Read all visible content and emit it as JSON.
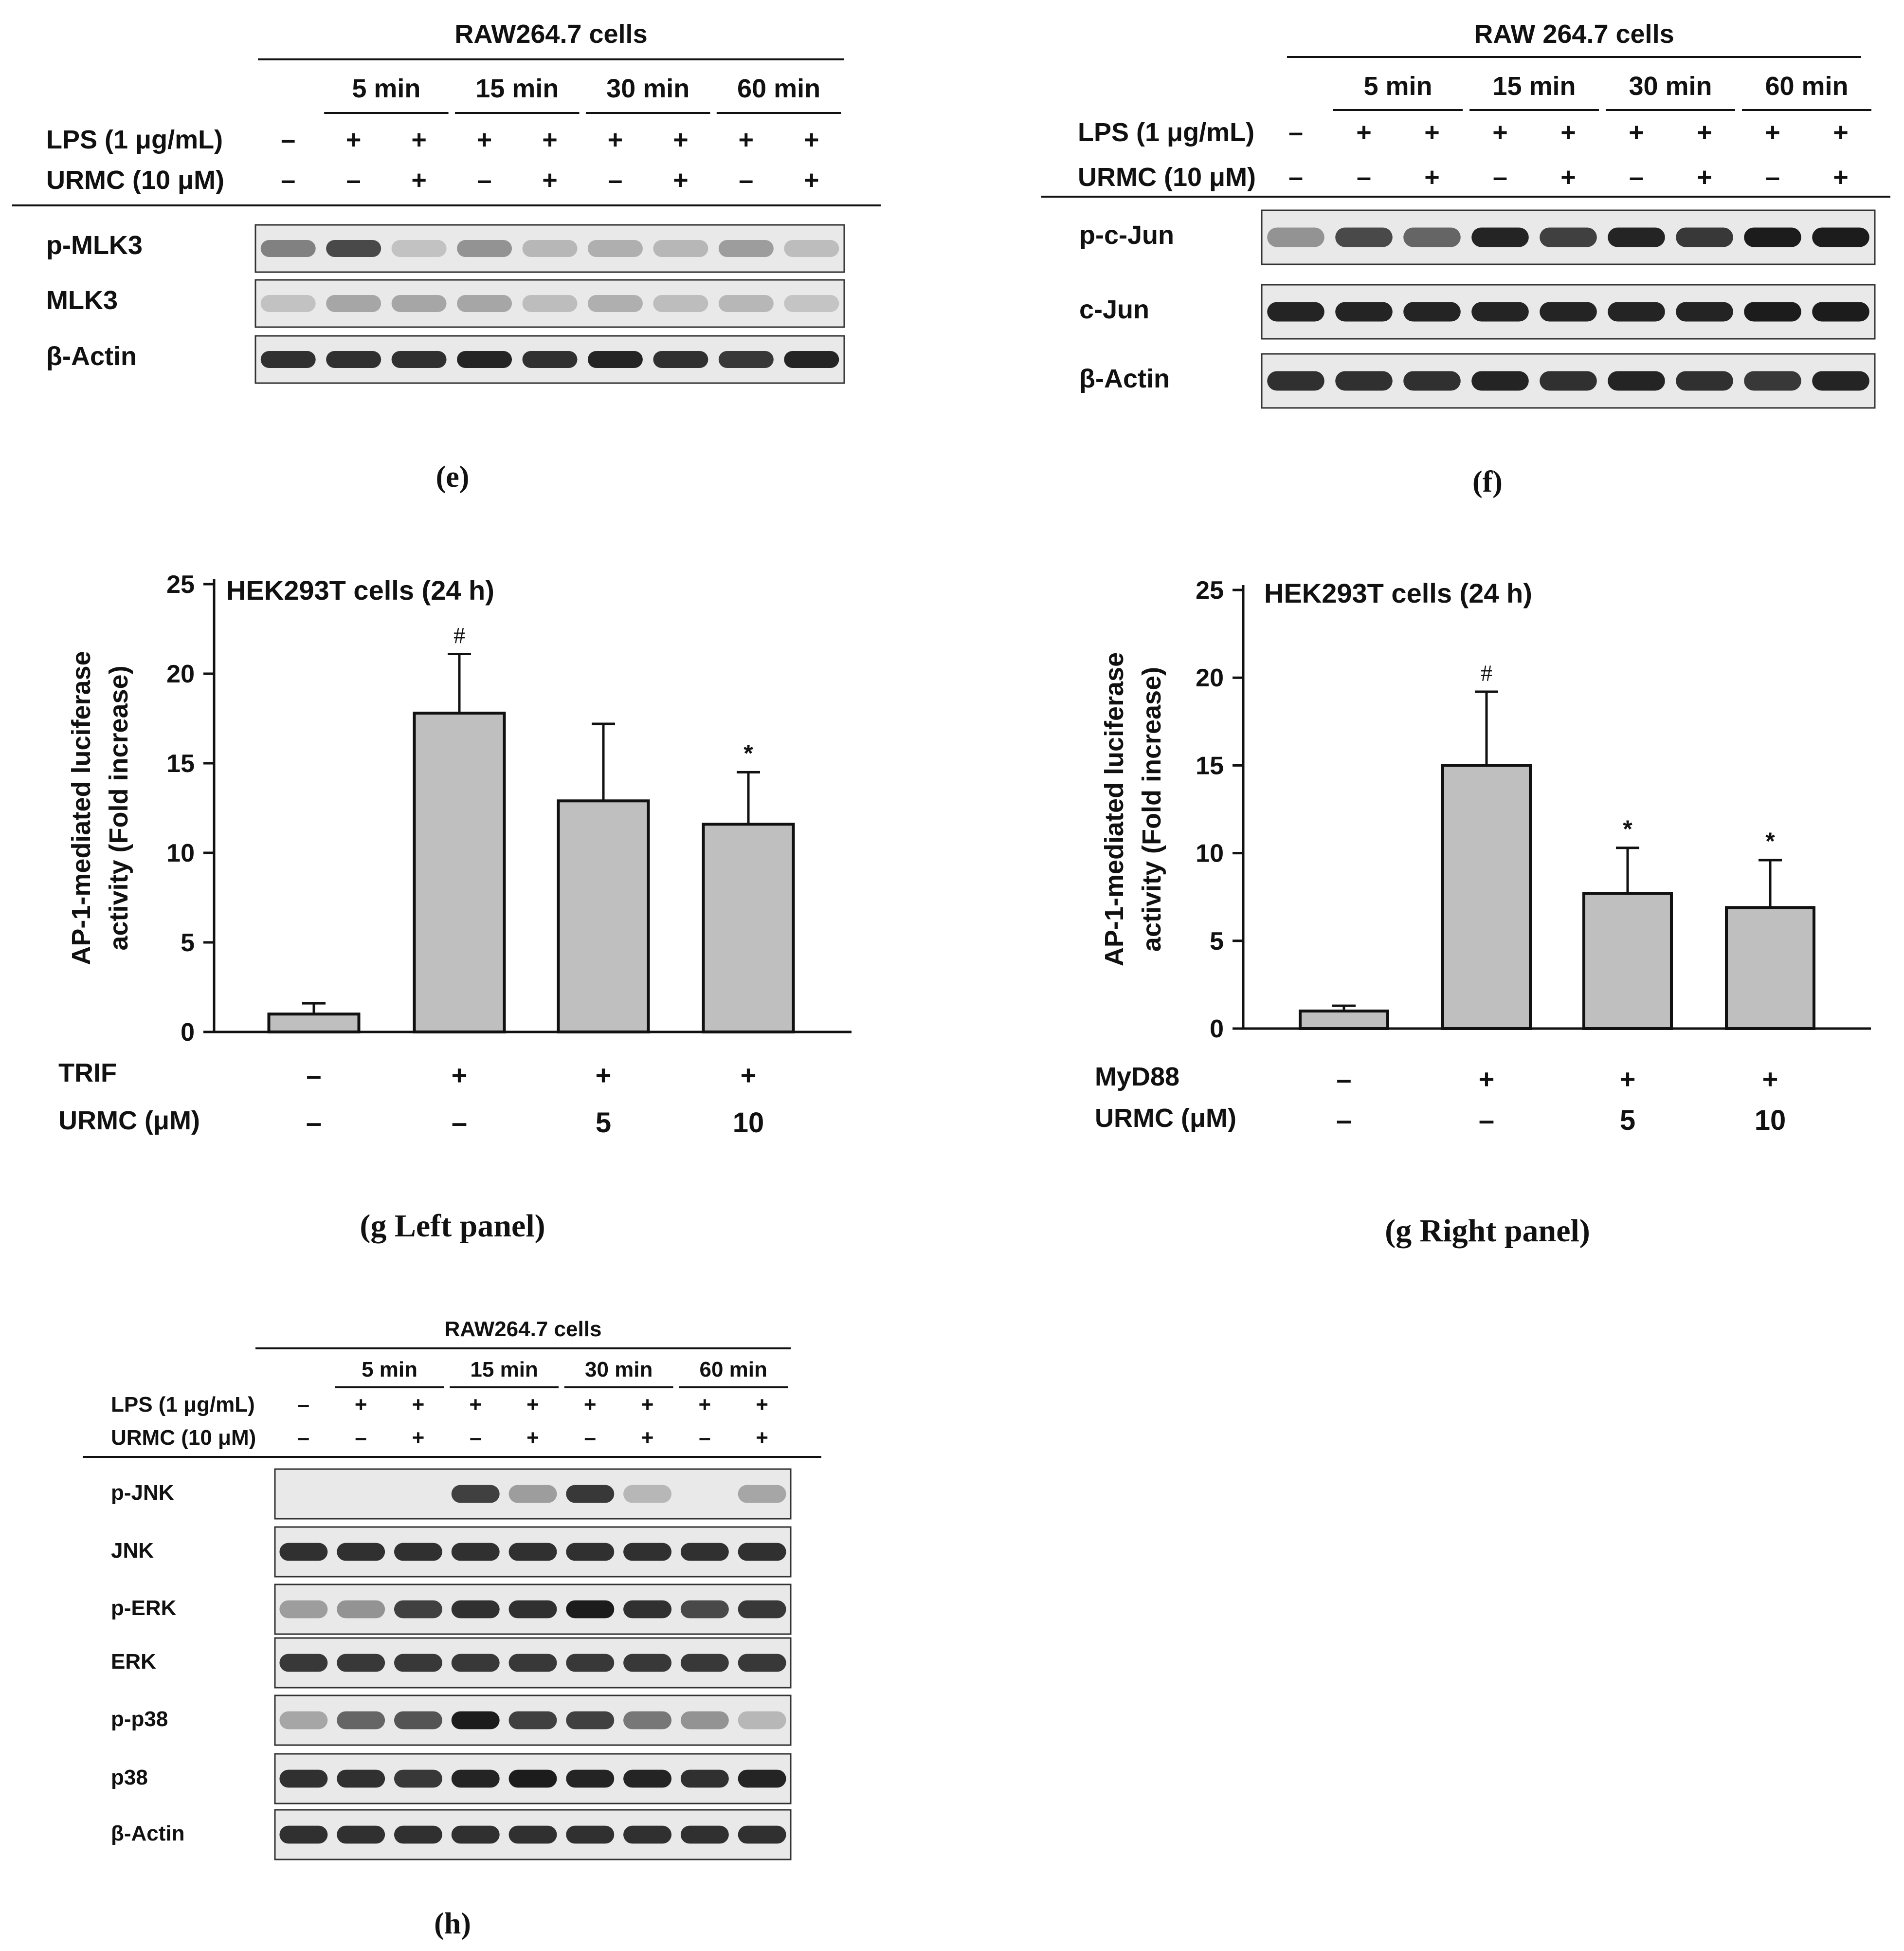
{
  "chart_data": [
    {
      "type": "blot",
      "panel": "(e)",
      "cells": "RAW264.7 cells",
      "timepoints": [
        "5 min",
        "15 min",
        "30 min",
        "60 min"
      ],
      "treatments": [
        {
          "label": "LPS (1 μg/mL)",
          "values": [
            "–",
            "+",
            "+",
            "+",
            "+",
            "+",
            "+",
            "+",
            "+"
          ]
        },
        {
          "label": "URMC (10 μM)",
          "values": [
            "–",
            "–",
            "+",
            "–",
            "+",
            "–",
            "+",
            "–",
            "+"
          ]
        }
      ],
      "rows": [
        {
          "label": "p-MLK3",
          "intensity": [
            0.45,
            0.75,
            0.1,
            0.35,
            0.15,
            0.2,
            0.15,
            0.3,
            0.12
          ]
        },
        {
          "label": "MLK3",
          "intensity": [
            0.1,
            0.25,
            0.25,
            0.25,
            0.12,
            0.2,
            0.12,
            0.15,
            0.08
          ]
        },
        {
          "label": "β-Actin",
          "intensity": [
            0.9,
            0.9,
            0.9,
            0.95,
            0.9,
            0.95,
            0.9,
            0.85,
            0.95
          ]
        }
      ]
    },
    {
      "type": "blot",
      "panel": "(f)",
      "cells": "RAW 264.7 cells",
      "timepoints": [
        "5 min",
        "15 min",
        "30 min",
        "60 min"
      ],
      "treatments": [
        {
          "label": "LPS (1 μg/mL)",
          "values": [
            "–",
            "+",
            "+",
            "+",
            "+",
            "+",
            "+",
            "+",
            "+"
          ]
        },
        {
          "label": "URMC (10 μM)",
          "values": [
            "–",
            "–",
            "+",
            "–",
            "+",
            "–",
            "+",
            "–",
            "+"
          ]
        }
      ],
      "rows": [
        {
          "label": "p-c-Jun",
          "intensity": [
            0.35,
            0.75,
            0.6,
            0.95,
            0.8,
            0.95,
            0.85,
            1.0,
            1.0
          ]
        },
        {
          "label": "c-Jun",
          "intensity": [
            0.95,
            0.95,
            0.95,
            0.95,
            0.95,
            0.95,
            0.95,
            1.0,
            1.0
          ]
        },
        {
          "label": "β-Actin",
          "intensity": [
            0.9,
            0.9,
            0.9,
            0.95,
            0.9,
            0.95,
            0.9,
            0.85,
            0.95
          ]
        }
      ]
    },
    {
      "type": "bar",
      "panel": "(g Left panel)",
      "title": "HEK293T cells (24 h)",
      "ylabel_line1": "AP-1-mediated luciferase",
      "ylabel_line2": "activity (Fold increase)",
      "ylim": [
        0,
        25
      ],
      "yticks": [
        "0",
        "5",
        "10",
        "15",
        "20",
        "25"
      ],
      "values": [
        1.0,
        17.8,
        12.9,
        11.6
      ],
      "errors": [
        0.6,
        3.3,
        4.3,
        2.9
      ],
      "annotations": [
        "",
        "#",
        "",
        "*"
      ],
      "factor1": {
        "label": "TRIF",
        "values": [
          "–",
          "+",
          "+",
          "+"
        ]
      },
      "factor2": {
        "label": "URMC  (μM)",
        "values": [
          "–",
          "–",
          "5",
          "10"
        ]
      }
    },
    {
      "type": "bar",
      "panel": "(g Right panel)",
      "title": "HEK293T cells (24 h)",
      "ylabel_line1": "AP-1-mediated luciferase",
      "ylabel_line2": "activity (Fold increase)",
      "ylim": [
        0,
        25
      ],
      "yticks": [
        "0",
        "5",
        "10",
        "15",
        "20",
        "25"
      ],
      "values": [
        1.0,
        15.0,
        7.7,
        6.9
      ],
      "errors": [
        0.3,
        4.2,
        2.6,
        2.7
      ],
      "annotations": [
        "",
        "#",
        "*",
        "*"
      ],
      "factor1": {
        "label": "MyD88",
        "values": [
          "–",
          "+",
          "+",
          "+"
        ]
      },
      "factor2": {
        "label": "URMC  (μM)",
        "values": [
          "–",
          "–",
          "5",
          "10"
        ]
      }
    },
    {
      "type": "blot",
      "panel": "(h)",
      "cells": "RAW264.7 cells",
      "timepoints": [
        "5 min",
        "15 min",
        "30 min",
        "60 min"
      ],
      "treatments": [
        {
          "label": "LPS (1 μg/mL)",
          "values": [
            "–",
            "+",
            "+",
            "+",
            "+",
            "+",
            "+",
            "+",
            "+"
          ]
        },
        {
          "label": "URMC (10 μM)",
          "values": [
            "–",
            "–",
            "+",
            "–",
            "+",
            "–",
            "+",
            "–",
            "+"
          ]
        }
      ],
      "rows": [
        {
          "label": "p-JNK",
          "intensity": [
            0.0,
            0.0,
            0.0,
            0.8,
            0.3,
            0.85,
            0.15,
            0.0,
            0.25
          ]
        },
        {
          "label": "JNK",
          "intensity": [
            0.9,
            0.9,
            0.9,
            0.9,
            0.9,
            0.9,
            0.9,
            0.9,
            0.9
          ]
        },
        {
          "label": "p-ERK",
          "intensity": [
            0.3,
            0.35,
            0.8,
            0.9,
            0.9,
            1.0,
            0.9,
            0.75,
            0.85
          ]
        },
        {
          "label": "ERK",
          "intensity": [
            0.85,
            0.85,
            0.85,
            0.85,
            0.85,
            0.85,
            0.85,
            0.85,
            0.85
          ]
        },
        {
          "label": "p-p38",
          "intensity": [
            0.25,
            0.6,
            0.7,
            1.0,
            0.8,
            0.8,
            0.5,
            0.35,
            0.15
          ]
        },
        {
          "label": "p38",
          "intensity": [
            0.9,
            0.9,
            0.85,
            0.95,
            1.0,
            0.95,
            0.95,
            0.9,
            0.95
          ]
        },
        {
          "label": "β-Actin",
          "intensity": [
            0.9,
            0.9,
            0.9,
            0.9,
            0.9,
            0.9,
            0.9,
            0.9,
            0.9
          ]
        }
      ]
    }
  ]
}
